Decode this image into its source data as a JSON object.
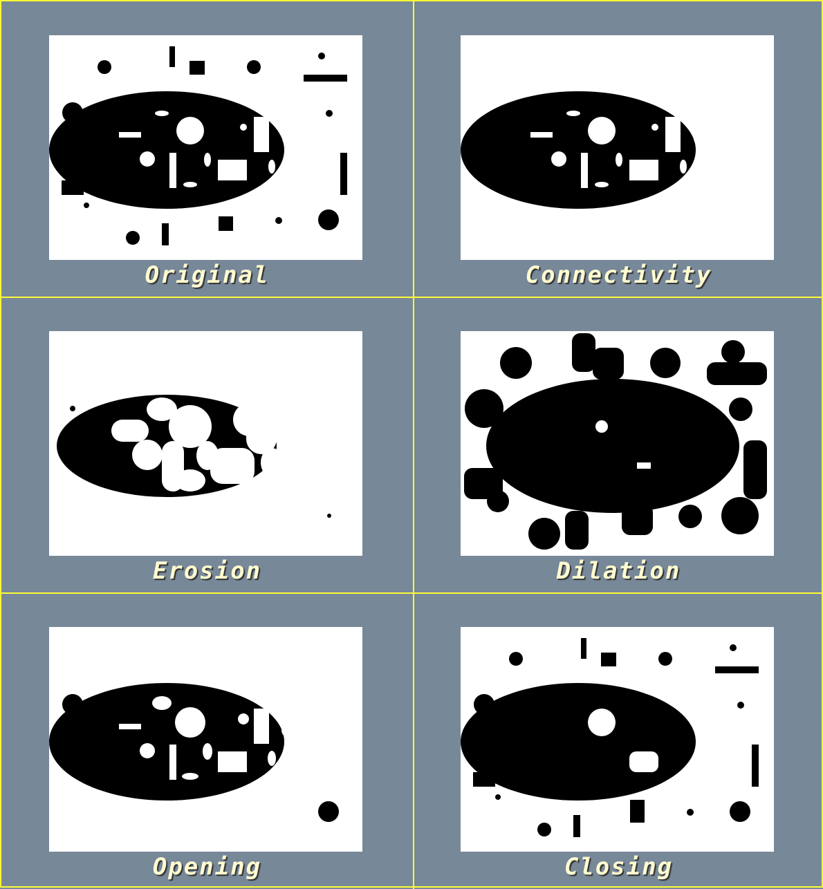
{
  "figure": {
    "background_color": "#778899",
    "grid_line_color": "#ffff33",
    "caption_color": "#fffbd0",
    "panels": [
      {
        "id": "original",
        "caption": "Original"
      },
      {
        "id": "connectivity",
        "caption": "Connectivity"
      },
      {
        "id": "erosion",
        "caption": "Erosion"
      },
      {
        "id": "dilation",
        "caption": "Dilation"
      },
      {
        "id": "opening",
        "caption": "Opening"
      },
      {
        "id": "closing",
        "caption": "Closing"
      }
    ]
  }
}
